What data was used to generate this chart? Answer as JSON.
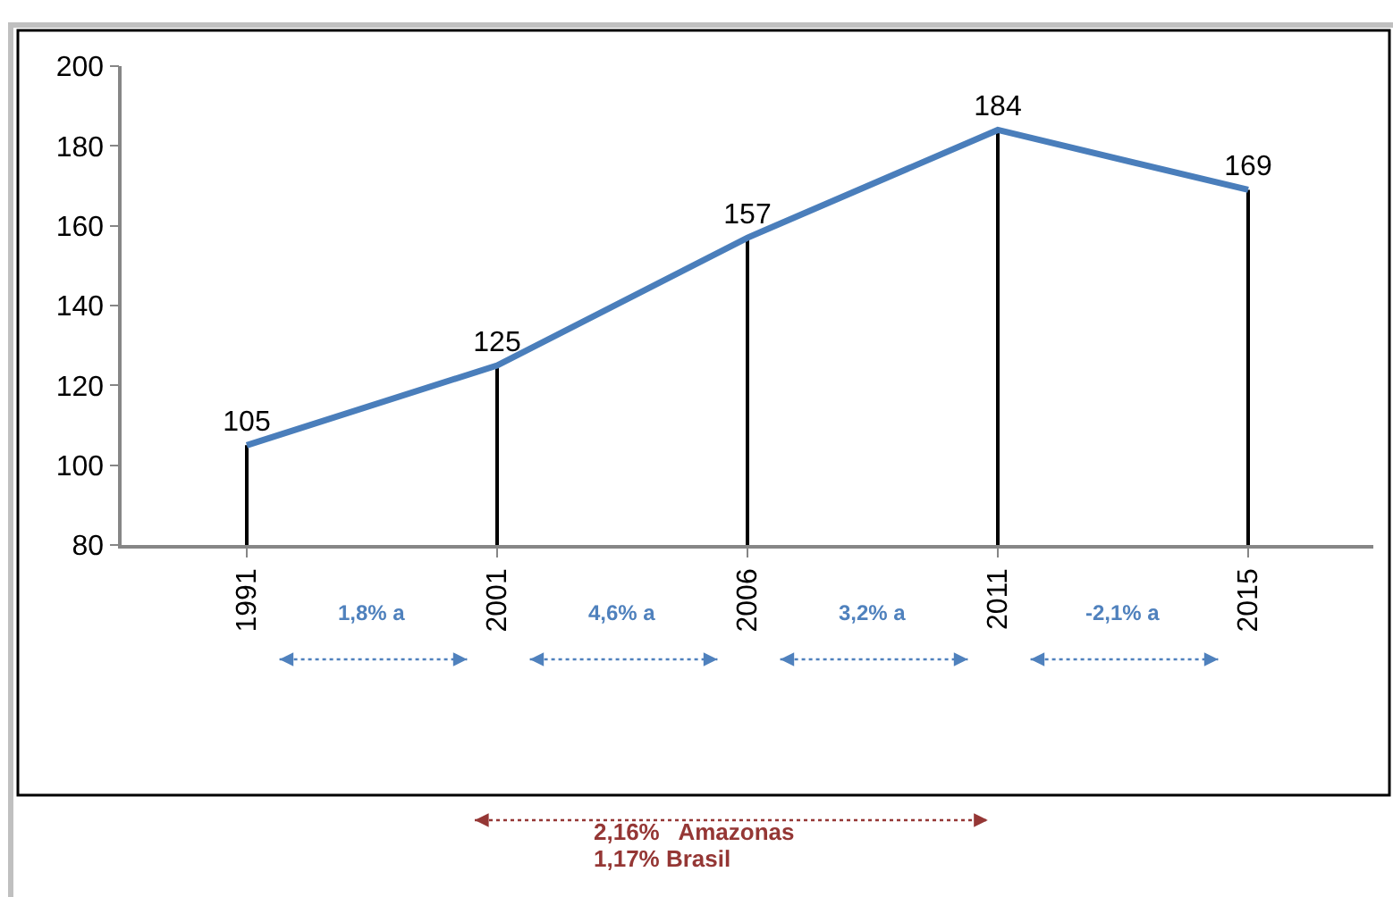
{
  "chart_data": {
    "type": "line",
    "categories": [
      "1991",
      "2001",
      "2006",
      "2011",
      "2015"
    ],
    "series": [
      {
        "color": "#4a7ebb",
        "values": [
          105,
          125,
          157,
          184,
          169
        ],
        "value_labels": [
          "105",
          "125",
          "157",
          "184",
          "169"
        ]
      },
      {
        "type": "bar",
        "color": "#000000",
        "values": [
          105,
          125,
          157,
          184,
          169
        ]
      }
    ],
    "ylim": [
      80,
      200
    ],
    "yticks": [
      80,
      100,
      120,
      140,
      160,
      180,
      200
    ],
    "grid": false,
    "marker": "none",
    "line_style": "solid",
    "annotations": [
      "1,8% a",
      "4,6% a",
      "3,2% a",
      "-2,1% a",
      "2,16%  Amazonas",
      "1,17% Brasil"
    ]
  }
}
